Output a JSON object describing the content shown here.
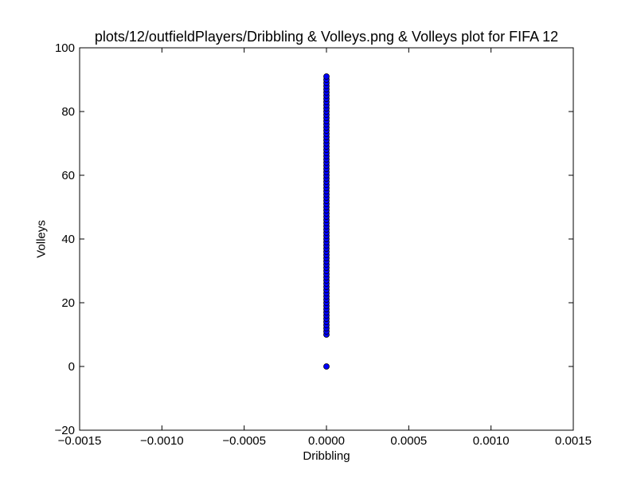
{
  "chart_data": {
    "type": "scatter",
    "title": "plots/12/outfieldPlayers/Dribbling & Volleys.png & Volleys plot for FIFA 12",
    "xlabel": "Dribbling",
    "ylabel": "Volleys",
    "xlim": [
      -0.0015,
      0.0015
    ],
    "ylim": [
      -20,
      100
    ],
    "x_ticks": [
      "−0.0015",
      "−0.0010",
      "−0.0005",
      "0.0000",
      "0.0005",
      "0.0010",
      "0.0015"
    ],
    "y_ticks": [
      "−20",
      "0",
      "20",
      "40",
      "60",
      "80",
      "100"
    ],
    "grid": false,
    "marker_color": "#0000ff",
    "series": [
      {
        "points": [
          [
            0,
            0
          ],
          [
            0,
            10
          ],
          [
            0,
            11
          ],
          [
            0,
            12
          ],
          [
            0,
            13
          ],
          [
            0,
            14
          ],
          [
            0,
            15
          ],
          [
            0,
            16
          ],
          [
            0,
            17
          ],
          [
            0,
            18
          ],
          [
            0,
            19
          ],
          [
            0,
            20
          ],
          [
            0,
            21
          ],
          [
            0,
            22
          ],
          [
            0,
            23
          ],
          [
            0,
            24
          ],
          [
            0,
            25
          ],
          [
            0,
            26
          ],
          [
            0,
            27
          ],
          [
            0,
            28
          ],
          [
            0,
            29
          ],
          [
            0,
            30
          ],
          [
            0,
            31
          ],
          [
            0,
            32
          ],
          [
            0,
            33
          ],
          [
            0,
            34
          ],
          [
            0,
            35
          ],
          [
            0,
            36
          ],
          [
            0,
            37
          ],
          [
            0,
            38
          ],
          [
            0,
            39
          ],
          [
            0,
            40
          ],
          [
            0,
            41
          ],
          [
            0,
            42
          ],
          [
            0,
            43
          ],
          [
            0,
            44
          ],
          [
            0,
            45
          ],
          [
            0,
            46
          ],
          [
            0,
            47
          ],
          [
            0,
            48
          ],
          [
            0,
            49
          ],
          [
            0,
            50
          ],
          [
            0,
            51
          ],
          [
            0,
            52
          ],
          [
            0,
            53
          ],
          [
            0,
            54
          ],
          [
            0,
            55
          ],
          [
            0,
            56
          ],
          [
            0,
            57
          ],
          [
            0,
            58
          ],
          [
            0,
            59
          ],
          [
            0,
            60
          ],
          [
            0,
            61
          ],
          [
            0,
            62
          ],
          [
            0,
            63
          ],
          [
            0,
            64
          ],
          [
            0,
            65
          ],
          [
            0,
            66
          ],
          [
            0,
            67
          ],
          [
            0,
            68
          ],
          [
            0,
            69
          ],
          [
            0,
            70
          ],
          [
            0,
            71
          ],
          [
            0,
            72
          ],
          [
            0,
            73
          ],
          [
            0,
            74
          ],
          [
            0,
            75
          ],
          [
            0,
            76
          ],
          [
            0,
            77
          ],
          [
            0,
            78
          ],
          [
            0,
            79
          ],
          [
            0,
            80
          ],
          [
            0,
            81
          ],
          [
            0,
            82
          ],
          [
            0,
            83
          ],
          [
            0,
            84
          ],
          [
            0,
            85
          ],
          [
            0,
            86
          ],
          [
            0,
            87
          ],
          [
            0,
            88
          ],
          [
            0,
            89
          ],
          [
            0,
            90
          ],
          [
            0,
            91
          ]
        ]
      }
    ]
  }
}
